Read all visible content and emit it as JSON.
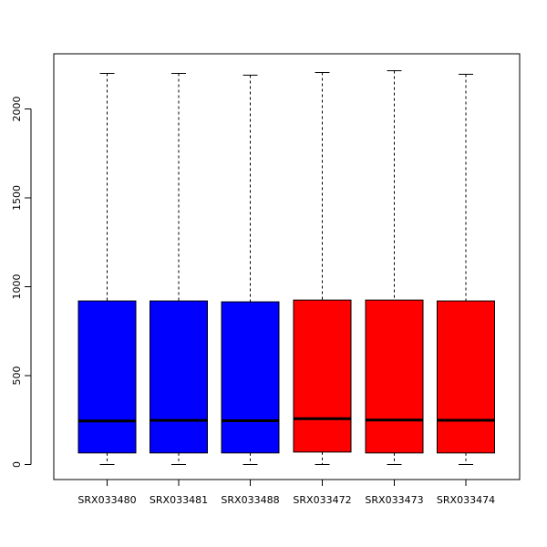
{
  "chart_data": {
    "type": "box",
    "title": "",
    "xlabel": "",
    "ylabel": "",
    "ylim": [
      -85,
      2260
    ],
    "yticks": [
      0,
      500,
      1000,
      1500,
      2000
    ],
    "ytick_labels": [
      "0",
      "500",
      "1000",
      "1500",
      "2000"
    ],
    "grid": false,
    "categories": [
      "SRX033480",
      "SRX033481",
      "SRX033488",
      "SRX033472",
      "SRX033473",
      "SRX033474"
    ],
    "boxes": [
      {
        "label": "SRX033480",
        "min": 0,
        "q1": 65,
        "median": 245,
        "q3": 920,
        "max": 2200,
        "color": "#0000ff"
      },
      {
        "label": "SRX033481",
        "min": 0,
        "q1": 65,
        "median": 248,
        "q3": 920,
        "max": 2200,
        "color": "#0000ff"
      },
      {
        "label": "SRX033488",
        "min": 0,
        "q1": 65,
        "median": 246,
        "q3": 915,
        "max": 2190,
        "color": "#0000ff"
      },
      {
        "label": "SRX033472",
        "min": 0,
        "q1": 70,
        "median": 258,
        "q3": 925,
        "max": 2205,
        "color": "#ff0000"
      },
      {
        "label": "SRX033473",
        "min": 0,
        "q1": 65,
        "median": 250,
        "q3": 925,
        "max": 2215,
        "color": "#ff0000"
      },
      {
        "label": "SRX033474",
        "min": 0,
        "q1": 65,
        "median": 249,
        "q3": 920,
        "max": 2195,
        "color": "#ff0000"
      }
    ]
  }
}
